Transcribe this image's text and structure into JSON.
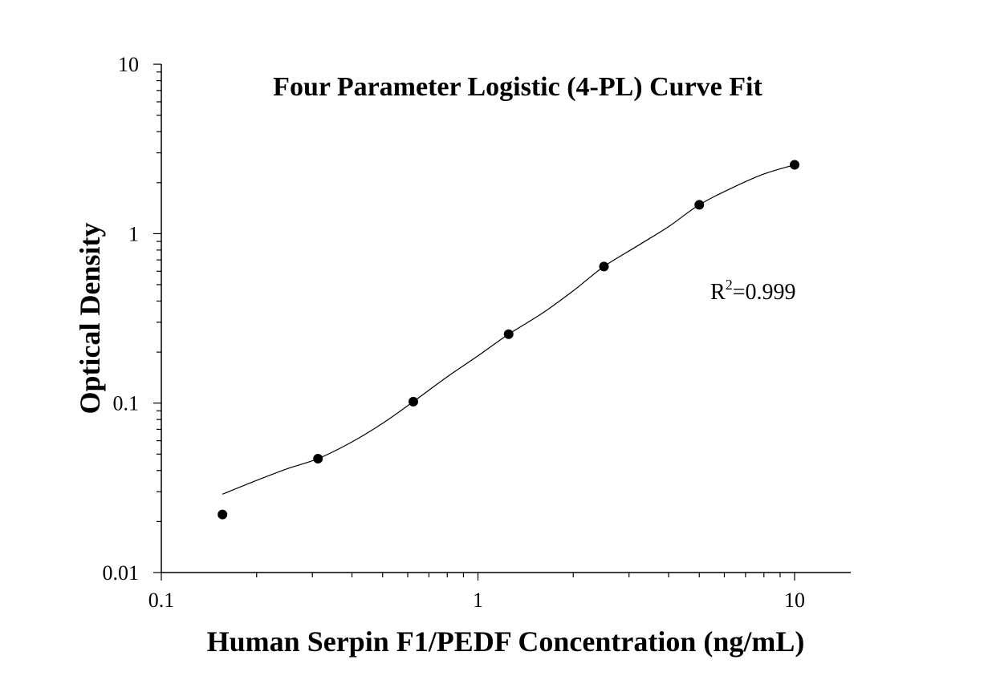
{
  "chart_data": {
    "type": "scatter",
    "title": "Four Parameter Logistic (4-PL) Curve Fit",
    "xlabel": "Human Serpin F1/PEDF Concentration (ng/mL)",
    "ylabel": "Optical Density",
    "x_scale": "log",
    "y_scale": "log",
    "xlim": [
      0.1,
      15
    ],
    "ylim": [
      0.01,
      10
    ],
    "x_ticks": [
      {
        "value": 0.1,
        "label": "0.1"
      },
      {
        "value": 1,
        "label": "1"
      },
      {
        "value": 10,
        "label": "10"
      }
    ],
    "y_ticks": [
      {
        "value": 0.01,
        "label": "0.01"
      },
      {
        "value": 0.1,
        "label": "0.1"
      },
      {
        "value": 1,
        "label": "1"
      },
      {
        "value": 10,
        "label": "10"
      }
    ],
    "grid": false,
    "points": [
      {
        "x": 0.156,
        "y": 0.022
      },
      {
        "x": 0.3125,
        "y": 0.047
      },
      {
        "x": 0.625,
        "y": 0.102
      },
      {
        "x": 1.25,
        "y": 0.255
      },
      {
        "x": 2.5,
        "y": 0.64
      },
      {
        "x": 5,
        "y": 1.48
      },
      {
        "x": 10,
        "y": 2.55
      }
    ],
    "fit_curve": {
      "model": "4-PL",
      "x": [
        0.156,
        0.2,
        0.25,
        0.3125,
        0.4,
        0.5,
        0.625,
        0.8,
        1.0,
        1.25,
        1.6,
        2.0,
        2.5,
        3.2,
        4.0,
        5.0,
        6.3,
        8.0,
        10.0
      ],
      "y": [
        0.029,
        0.035,
        0.041,
        0.047,
        0.059,
        0.076,
        0.102,
        0.143,
        0.19,
        0.255,
        0.34,
        0.46,
        0.64,
        0.85,
        1.1,
        1.48,
        1.85,
        2.25,
        2.55
      ]
    },
    "annotation": {
      "base": "R",
      "superscript": "2",
      "rest": "=0.999"
    }
  }
}
